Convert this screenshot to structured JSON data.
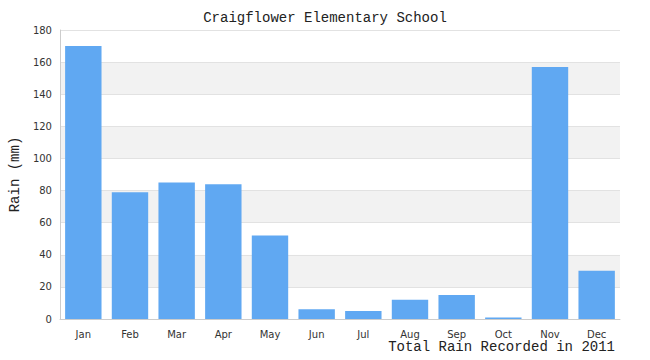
{
  "chart_data": {
    "type": "bar",
    "title": "Craigflower Elementary School",
    "xlabel": "Total Rain Recorded in 2011",
    "ylabel": "Rain (mm)",
    "categories": [
      "Jan",
      "Feb",
      "Mar",
      "Apr",
      "May",
      "Jun",
      "Jul",
      "Aug",
      "Sep",
      "Oct",
      "Nov",
      "Dec"
    ],
    "values": [
      170,
      79,
      85,
      84,
      52,
      6,
      5,
      12,
      15,
      1,
      157,
      30
    ],
    "color": "#60a8f2",
    "ylim": [
      0,
      180
    ],
    "yticks": [
      0,
      20,
      40,
      60,
      80,
      100,
      120,
      140,
      160,
      180
    ],
    "grid": true
  }
}
